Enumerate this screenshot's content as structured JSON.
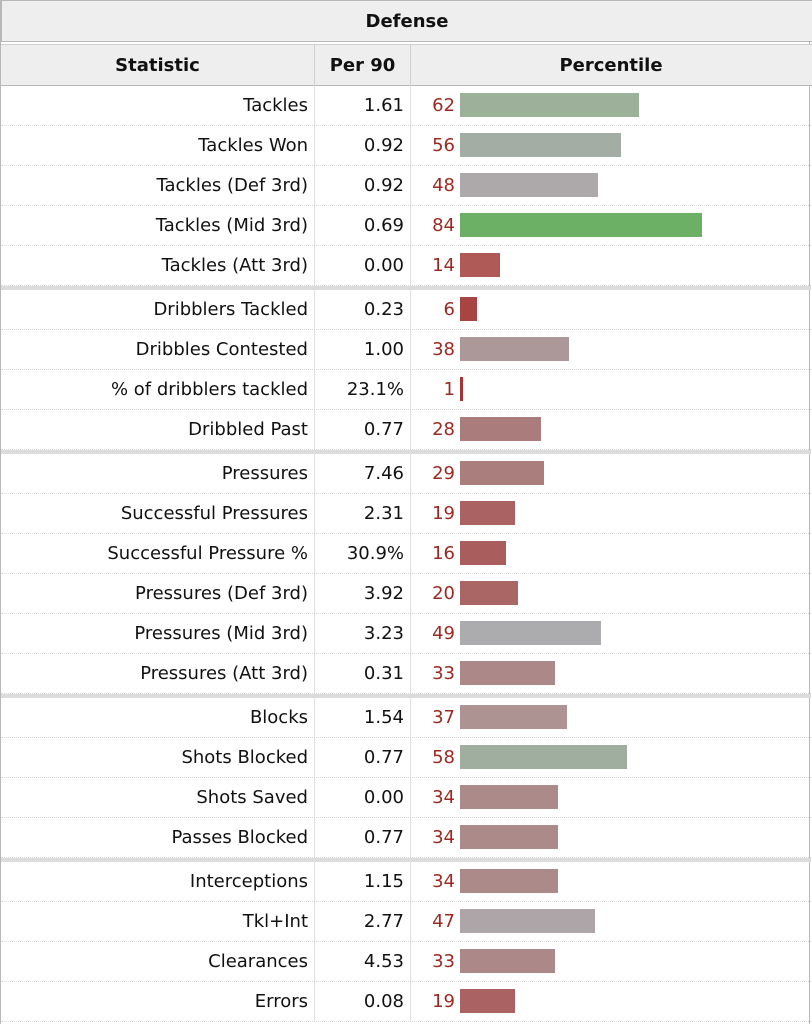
{
  "table": {
    "title": "Defense",
    "headers": {
      "statistic": "Statistic",
      "per90": "Per 90",
      "percentile": "Percentile"
    },
    "groups": [
      [
        {
          "stat": "Tackles",
          "per90": "1.61",
          "percentile": "62",
          "color": "#9db09a"
        },
        {
          "stat": "Tackles Won",
          "per90": "0.92",
          "percentile": "56",
          "color": "#a4ada3"
        },
        {
          "stat": "Tackles (Def 3rd)",
          "per90": "0.92",
          "percentile": "48",
          "color": "#ada9ab"
        },
        {
          "stat": "Tackles (Mid 3rd)",
          "per90": "0.69",
          "percentile": "84",
          "color": "#6cb066"
        },
        {
          "stat": "Tackles (Att 3rd)",
          "per90": "0.00",
          "percentile": "14",
          "color": "#b05a58"
        }
      ],
      [
        {
          "stat": "Dribblers Tackled",
          "per90": "0.23",
          "percentile": "6",
          "color": "#a84442"
        },
        {
          "stat": "Dribbles Contested",
          "per90": "1.00",
          "percentile": "38",
          "color": "#ad9899"
        },
        {
          "stat": "% of dribblers tackled",
          "per90": "23.1%",
          "percentile": "1",
          "color": "#a53534"
        },
        {
          "stat": "Dribbled Past",
          "per90": "0.77",
          "percentile": "28",
          "color": "#ab7c7c"
        }
      ],
      [
        {
          "stat": "Pressures",
          "per90": "7.46",
          "percentile": "29",
          "color": "#ab7e7e"
        },
        {
          "stat": "Successful Pressures",
          "per90": "2.31",
          "percentile": "19",
          "color": "#aa6262"
        },
        {
          "stat": "Successful Pressure %",
          "per90": "30.9%",
          "percentile": "16",
          "color": "#a95d5c"
        },
        {
          "stat": "Pressures (Def 3rd)",
          "per90": "3.92",
          "percentile": "20",
          "color": "#aa6665"
        },
        {
          "stat": "Pressures (Mid 3rd)",
          "per90": "3.23",
          "percentile": "49",
          "color": "#acabad"
        },
        {
          "stat": "Pressures (Att 3rd)",
          "per90": "0.31",
          "percentile": "33",
          "color": "#ad8888"
        }
      ],
      [
        {
          "stat": "Blocks",
          "per90": "1.54",
          "percentile": "37",
          "color": "#ae9393"
        },
        {
          "stat": "Shots Blocked",
          "per90": "0.77",
          "percentile": "58",
          "color": "#9fae9e"
        },
        {
          "stat": "Shots Saved",
          "per90": "0.00",
          "percentile": "34",
          "color": "#ad8a8a"
        },
        {
          "stat": "Passes Blocked",
          "per90": "0.77",
          "percentile": "34",
          "color": "#ad8a8a"
        }
      ],
      [
        {
          "stat": "Interceptions",
          "per90": "1.15",
          "percentile": "34",
          "color": "#ad8a8a"
        },
        {
          "stat": "Tkl+Int",
          "per90": "2.77",
          "percentile": "47",
          "color": "#ada5a7"
        },
        {
          "stat": "Clearances",
          "per90": "4.53",
          "percentile": "33",
          "color": "#ad8888"
        },
        {
          "stat": "Errors",
          "per90": "0.08",
          "percentile": "19",
          "color": "#aa6262"
        }
      ]
    ]
  }
}
